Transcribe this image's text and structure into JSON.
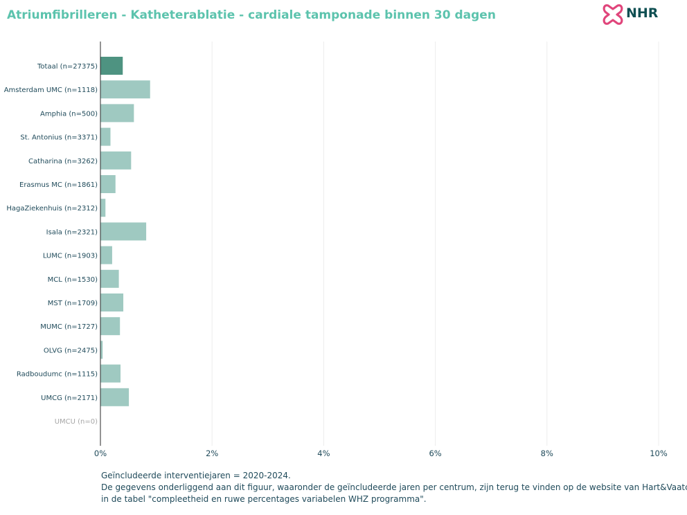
{
  "title": "Atriumfibrilleren - Katheterablatie - cardiale tamponade binnen 30 dagen",
  "logo": {
    "text": "NHR",
    "icon": "nhr-heart-logo-icon"
  },
  "colors": {
    "title": "#5cc3ad",
    "highlight_bar": "#4e9381",
    "bar": "#9fc9c1",
    "axis_text": "#1f4a5a",
    "muted_text": "#a6a6a6",
    "grid": "#ececec",
    "logo_pink": "#e0457b",
    "logo_text": "#0f4f52"
  },
  "chart_data": {
    "type": "bar",
    "orientation": "horizontal",
    "title": "Atriumfibrilleren - Katheterablatie - cardiale tamponade binnen 30 dagen",
    "xlabel": "",
    "ylabel": "",
    "xlim": [
      0,
      10
    ],
    "x_ticks": [
      "0%",
      "2%",
      "4%",
      "6%",
      "8%",
      "10%"
    ],
    "grid": "vertical",
    "categories": [
      "Totaal (n=27375)",
      "Amsterdam UMC (n=1118)",
      "Amphia (n=500)",
      "St. Antonius (n=3371)",
      "Catharina (n=3262)",
      "Erasmus MC (n=1861)",
      "HagaZiekenhuis (n=2312)",
      "Isala (n=2321)",
      "LUMC (n=1903)",
      "MCL (n=1530)",
      "MST (n=1709)",
      "MUMC (n=1727)",
      "OLVG (n=2475)",
      "Radboudumc (n=1115)",
      "UMCG (n=2171)",
      "UMCU (n=0)"
    ],
    "values": [
      0.4,
      0.89,
      0.6,
      0.18,
      0.55,
      0.27,
      0.09,
      0.82,
      0.21,
      0.33,
      0.41,
      0.35,
      0.04,
      0.36,
      0.51,
      null
    ],
    "highlight": [
      "Totaal (n=27375)"
    ],
    "muted": [
      "UMCU (n=0)"
    ]
  },
  "footer": {
    "line1": "Geïncludeerde interventiejaren = 2020-2024.",
    "line2": "De gegevens onderliggend aan dit figuur, waaronder de geïncludeerde jaren per centrum, zijn terug te vinden op de website van Hart&Vaatcijfers",
    "line3": "in de tabel \"compleetheid en ruwe percentages variabelen WHZ programma\"."
  }
}
